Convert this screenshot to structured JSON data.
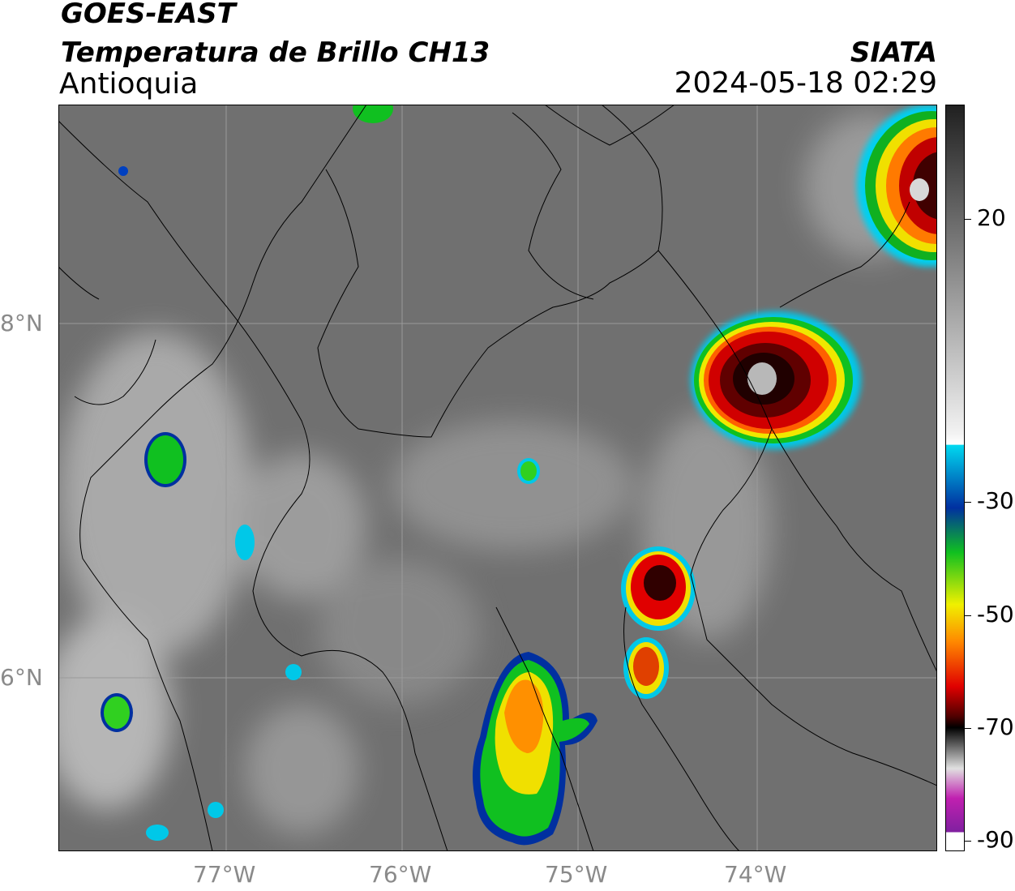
{
  "header": {
    "title_line1": "GOES-EAST",
    "title_line2": "Temperatura de Brillo CH13",
    "region": "Antioquia",
    "brand": "SIATA",
    "datetime": "2024-05-18 02:29"
  },
  "axes": {
    "lat_labels": [
      "8°N",
      "6°N"
    ],
    "lon_labels": [
      "77°W",
      "76°W",
      "75°W",
      "74°W"
    ]
  },
  "colorbar": {
    "ticks": [
      "20",
      "-30",
      "-50",
      "-70",
      "-90"
    ],
    "colors": {
      "gray_light": "#f2f2f2",
      "gray_dark": "#202020",
      "cyan": "#00d8f0",
      "blue": "#0030a0",
      "green": "#10c020",
      "yellow": "#f0f000",
      "orange": "#ff8800",
      "red": "#e00000",
      "darkred": "#500000",
      "magenta": "#c020b0"
    }
  },
  "map": {
    "background_gray": "#6e6e6e",
    "features": [
      "storm-cell-northeast",
      "storm-cell-east",
      "storm-cell-central-east",
      "storm-cell-south",
      "storm-cell-west",
      "storm-cell-southwest"
    ]
  }
}
